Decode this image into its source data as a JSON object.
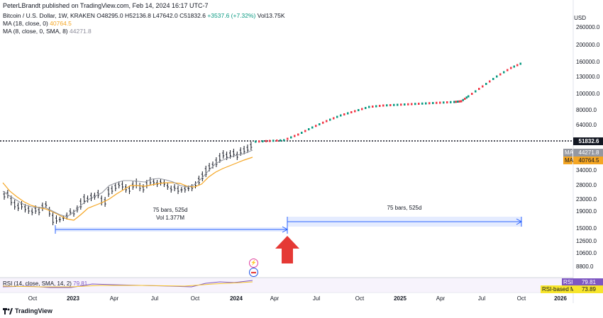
{
  "publisher": "PeterLBrandt published on TradingView.com, Feb 14, 2024 16:17 UTC-7",
  "legend": {
    "symbol": "Bitcoin / U.S. Dollar, 1W, KRAKEN",
    "open": "O48295.0",
    "high": "H52136.8",
    "low": "L47642.0",
    "close": "C51832.6",
    "change": "+3537.6 (+7.32%)",
    "volume": "Vol13.75K",
    "ma18_label": "MA (18, close, 0)",
    "ma18_value": "40764.5",
    "ma8_label": "MA (8, close, 0, SMA, 8)",
    "ma8_value": "44271.8"
  },
  "axis": {
    "currency": "USD",
    "price_ticks": [
      "260000.0",
      "200000.0",
      "160000.0",
      "130000.0",
      "100000.0",
      "80000.0",
      "64000.0",
      "34000.0",
      "28000.0",
      "23000.0",
      "19000.0",
      "15000.0",
      "12600.0",
      "10600.0",
      "8800.0"
    ],
    "time_ticks": [
      "Oct",
      "2023",
      "Apr",
      "Jul",
      "Oct",
      "2024",
      "Apr",
      "Jul",
      "Oct",
      "2025",
      "Apr",
      "Jul",
      "Oct",
      "2026"
    ]
  },
  "tags": {
    "last_price": "51832.6",
    "ma_name": "MA",
    "ma8_value": "44271.8",
    "ma18_value": "40764.5"
  },
  "ranges": {
    "range1_bars": "75 bars, 525d",
    "range1_vol": "Vol 1.377M",
    "range2_bars": "75 bars, 525d"
  },
  "rsi": {
    "label": "RSI (14, close, SMA, 14, 2)",
    "value": "79.81",
    "tag_name": "RSI",
    "tag_value": "79.81",
    "ma_name": "RSI-based MA",
    "ma_value": "73.89"
  },
  "brand": "TradingView",
  "colors": {
    "up": "#089981",
    "down": "#f23645",
    "ma18": "#f5a623",
    "ma8": "#9598a1",
    "range": "#2962ff",
    "rsi": "#7e57c2",
    "arrow": "#e53935"
  }
}
